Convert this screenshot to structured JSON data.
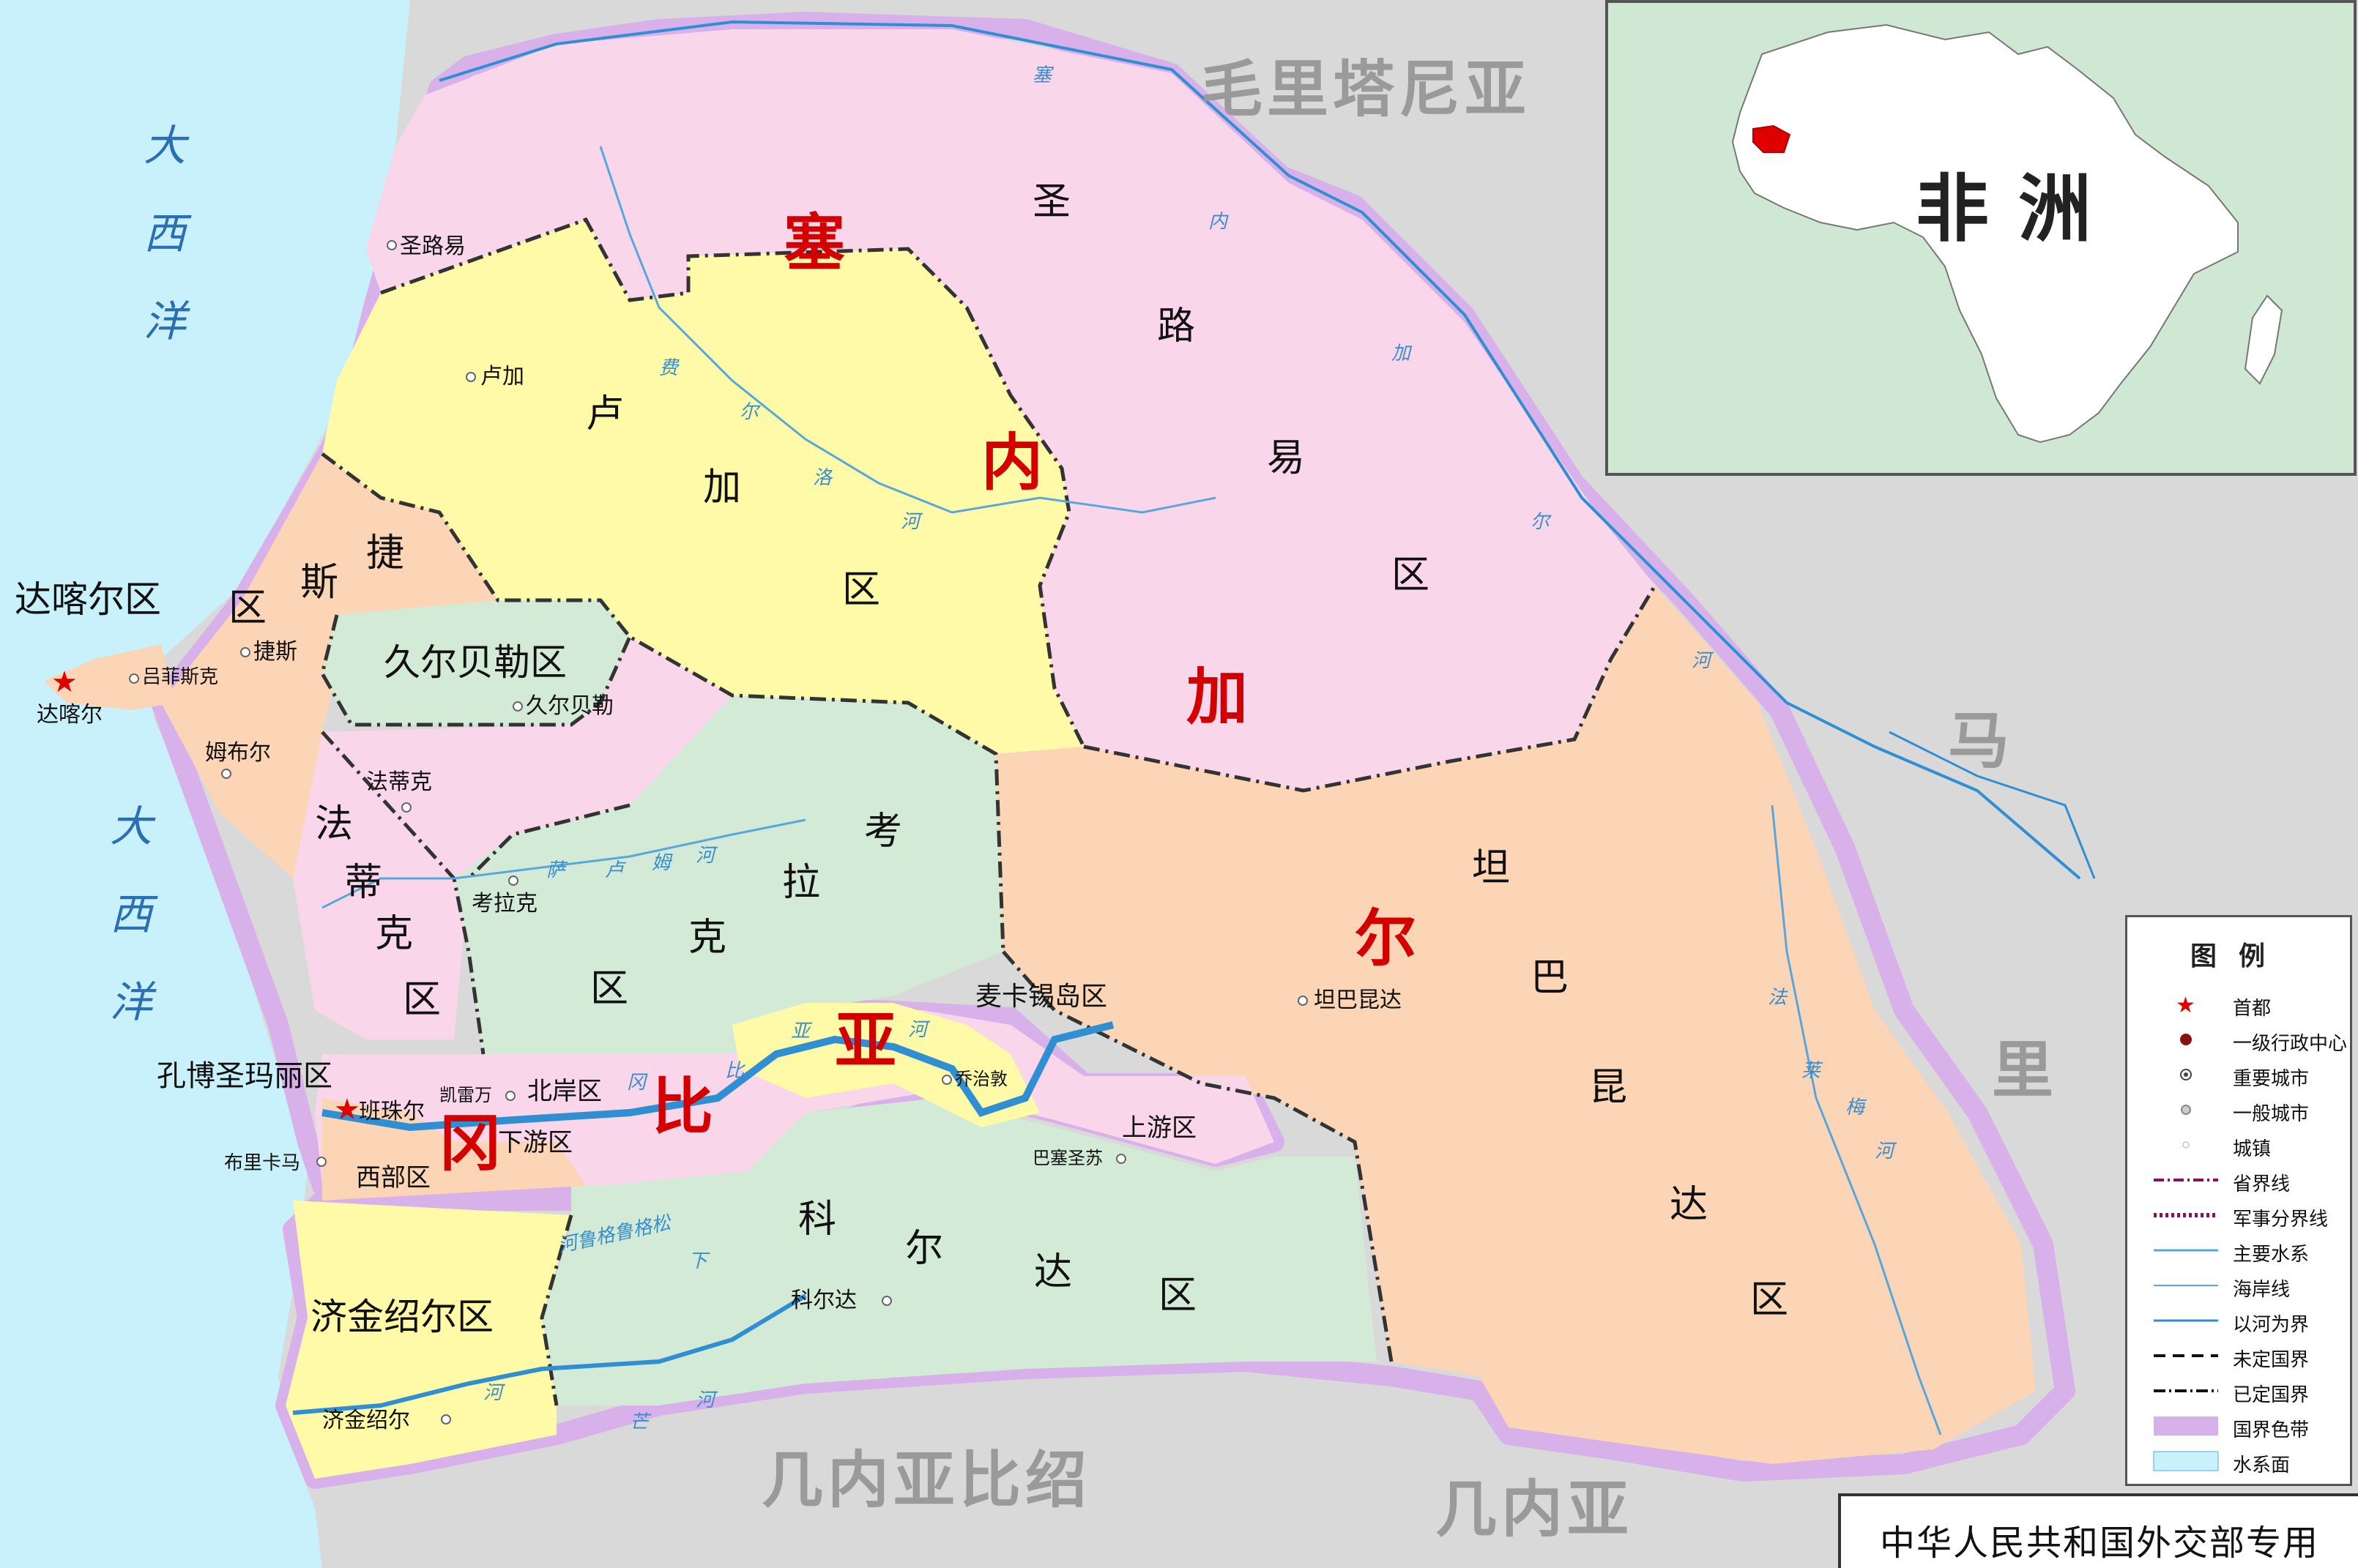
{
  "neighbors": {
    "mauritania": "毛里塔尼亚",
    "mali_1": "马",
    "mali_2": "里",
    "guinea_bissau": "几内亚比绍",
    "guinea": "几内亚"
  },
  "ocean": {
    "north_1": "大",
    "north_2": "西",
    "north_3": "洋",
    "south_1": "大",
    "south_2": "西",
    "south_3": "洋"
  },
  "country": {
    "senegal_1": "塞",
    "senegal_2": "内",
    "senegal_3": "加",
    "senegal_4": "尔",
    "gambia_1": "冈",
    "gambia_2": "比",
    "gambia_3": "亚"
  },
  "regions": {
    "saint_louis_1": "圣",
    "saint_louis_2": "路",
    "saint_louis_3": "易",
    "saint_louis_4": "区",
    "louga_1": "卢",
    "louga_2": "加",
    "louga_3": "区",
    "thies_1": "捷",
    "thies_2": "斯",
    "thies_3": "区",
    "dakar": "达喀尔区",
    "diourbel": "久尔贝勒区",
    "fatick_1": "法",
    "fatick_2": "蒂",
    "fatick_3": "克",
    "fatick_4": "区",
    "kaolack_1": "考",
    "kaolack_2": "拉",
    "kaolack_3": "克",
    "kaolack_4": "区",
    "tamba_1": "坦",
    "tamba_2": "巴",
    "tamba_3": "昆",
    "tamba_4": "达",
    "tamba_5": "区",
    "kolda_1": "科",
    "kolda_2": "尔",
    "kolda_3": "达",
    "kolda_4": "区",
    "ziguinchor": "济金绍尔区",
    "kombo": "孔博圣玛丽区",
    "north_bank": "北岸区",
    "lower_river": "下游区",
    "western": "西部区",
    "maccarthy": "麦卡锡岛区",
    "upper_river": "上游区"
  },
  "cities": {
    "saint_louis": "圣路易",
    "louga": "卢加",
    "thies": "捷斯",
    "rufisque": "吕菲斯克",
    "dakar": "达喀尔",
    "mbour": "姆布尔",
    "diourbel": "久尔贝勒",
    "fatick": "法蒂克",
    "kaolack": "考拉克",
    "tambacounda": "坦巴昆达",
    "kolda": "科尔达",
    "ziguinchor": "济金绍尔",
    "banjul": "班珠尔",
    "brikama": "布里卡马",
    "kerewan": "凯雷万",
    "georgetown": "乔治敦",
    "basse": "巴塞圣苏"
  },
  "rivers": {
    "senegal_1": "塞",
    "senegal_2": "内",
    "senegal_3": "加",
    "senegal_4": "尔",
    "senegal_5": "河",
    "ferlo_1": "费",
    "ferlo_2": "尔",
    "ferlo_3": "洛",
    "ferlo_4": "河",
    "saloum_1": "萨",
    "saloum_2": "卢",
    "saloum_3": "姆",
    "saloum_4": "河",
    "gambia_1": "冈",
    "gambia_2": "比",
    "gambia_3": "亚",
    "gambia_4": "河",
    "faleme_1": "法",
    "faleme_2": "莱",
    "faleme_3": "梅",
    "faleme_4": "河",
    "geba": "河鲁格鲁格松",
    "casamance_1": "河",
    "casamance_2": "下",
    "casamance_3": "芒",
    "casamance_4": "河"
  },
  "inset": {
    "title": "非洲"
  },
  "legend": {
    "title": "图例",
    "items": [
      {
        "symbol": "capital",
        "label": "首都"
      },
      {
        "symbol": "admin-center",
        "label": "一级行政中心"
      },
      {
        "symbol": "major-city",
        "label": "重要城市"
      },
      {
        "symbol": "city",
        "label": "一般城市"
      },
      {
        "symbol": "town",
        "label": "城镇"
      },
      {
        "symbol": "province-border",
        "label": "省界线"
      },
      {
        "symbol": "military-line",
        "label": "军事分界线"
      },
      {
        "symbol": "main-water",
        "label": "主要水系"
      },
      {
        "symbol": "coastline",
        "label": "海岸线"
      },
      {
        "symbol": "river-border",
        "label": "以河为界"
      },
      {
        "symbol": "undefined-border",
        "label": "未定国界"
      },
      {
        "symbol": "defined-border",
        "label": "已定国界"
      },
      {
        "symbol": "border-band",
        "label": "国界色带"
      },
      {
        "symbol": "water-area",
        "label": "水系面"
      }
    ]
  },
  "footer": "中华人民共和国外交部专用",
  "colors": {
    "ocean": "#c9f1fb",
    "neighbor": "#d9d9d9",
    "saint_louis": "#f9d6ea",
    "louga": "#fefaa7",
    "thies": "#fbd5b5",
    "diourbel": "#d3ebd6",
    "kaolack": "#d3ebd6",
    "tambacounda": "#fbd5b5",
    "kolda": "#d3ebd6",
    "ziguinchor": "#fefaa7",
    "border_band": "#d8b0ea",
    "river": "#2f8fd2"
  }
}
